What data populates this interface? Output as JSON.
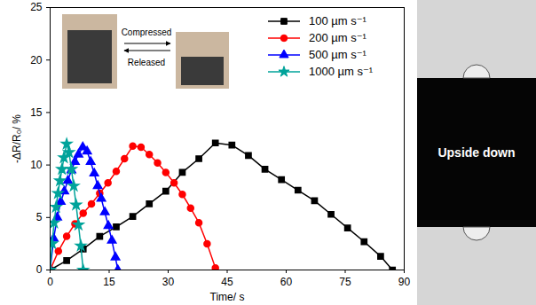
{
  "chart_data": {
    "type": "line",
    "xlabel": "Time/ s",
    "ylabel": "-ΔR/R₀/ %",
    "xlim": [
      0,
      90
    ],
    "xticks": [
      0,
      15,
      30,
      45,
      60,
      75,
      90
    ],
    "ylim": [
      0,
      25
    ],
    "yticks": [
      0,
      5,
      10,
      15,
      20,
      25
    ],
    "legend": "top-right",
    "annotations": [
      "Compressed",
      "Released"
    ],
    "series": [
      {
        "name": "100 µm s⁻¹",
        "color": "#000000",
        "marker": "square",
        "line_style": "solid",
        "x": [
          0,
          4.2,
          8.4,
          12.6,
          16.8,
          21,
          25.2,
          29.4,
          33.6,
          37.8,
          42,
          46.2,
          50.4,
          54.6,
          58.8,
          63,
          67.2,
          71.4,
          75.6,
          79.8,
          84,
          87
        ],
        "values": [
          0,
          0.9,
          2.0,
          3.2,
          4.1,
          5.1,
          6.3,
          7.5,
          9.3,
          10.6,
          12.1,
          11.9,
          10.9,
          9.6,
          8.6,
          7.6,
          6.6,
          5.3,
          4.0,
          2.7,
          1.3,
          0
        ]
      },
      {
        "name": "200 µm s⁻¹",
        "color": "#ff0000",
        "marker": "circle",
        "line_style": "solid",
        "x": [
          0,
          2.1,
          4.2,
          6.3,
          8.4,
          10.5,
          12.6,
          14.7,
          16.8,
          18.9,
          21,
          23.1,
          25.2,
          27.3,
          29.4,
          31.5,
          33.6,
          35.7,
          37.8,
          39.9,
          42
        ],
        "values": [
          0,
          1.8,
          3.2,
          4.4,
          5.4,
          6.3,
          7.3,
          8.3,
          9.4,
          10.6,
          11.8,
          11.7,
          11.0,
          10.2,
          9.3,
          8.3,
          7.2,
          5.9,
          4.5,
          2.5,
          0.2
        ]
      },
      {
        "name": "500 µm s⁻¹",
        "color": "#0000ff",
        "marker": "triangle",
        "line_style": "solid",
        "x": [
          0,
          0.9,
          1.8,
          2.7,
          3.6,
          4.5,
          5.4,
          6.3,
          7.2,
          8.3,
          9.4,
          10.3,
          11.2,
          12.1,
          13.0,
          13.9,
          14.8,
          15.7,
          16.6,
          17.2
        ],
        "values": [
          0,
          3.0,
          5.0,
          6.5,
          7.5,
          8.5,
          9.5,
          10.3,
          11.0,
          11.7,
          11.3,
          10.3,
          9.2,
          8.0,
          6.8,
          5.5,
          4.2,
          2.8,
          1.2,
          0
        ]
      },
      {
        "name": "1000 µm s⁻¹",
        "color": "#00a39a",
        "marker": "star",
        "line_style": "solid",
        "x": [
          0,
          0.5,
          1,
          1.5,
          2,
          2.5,
          3,
          3.5,
          4.2,
          4.8,
          5.4,
          6,
          6.6,
          7.2,
          7.8,
          8.4
        ],
        "values": [
          0,
          2.5,
          4.5,
          6.0,
          7.3,
          8.5,
          9.6,
          10.7,
          12.0,
          11.2,
          9.6,
          8.0,
          6.2,
          4.3,
          2.3,
          0
        ]
      }
    ]
  },
  "photo": {
    "label": "Upside down"
  }
}
